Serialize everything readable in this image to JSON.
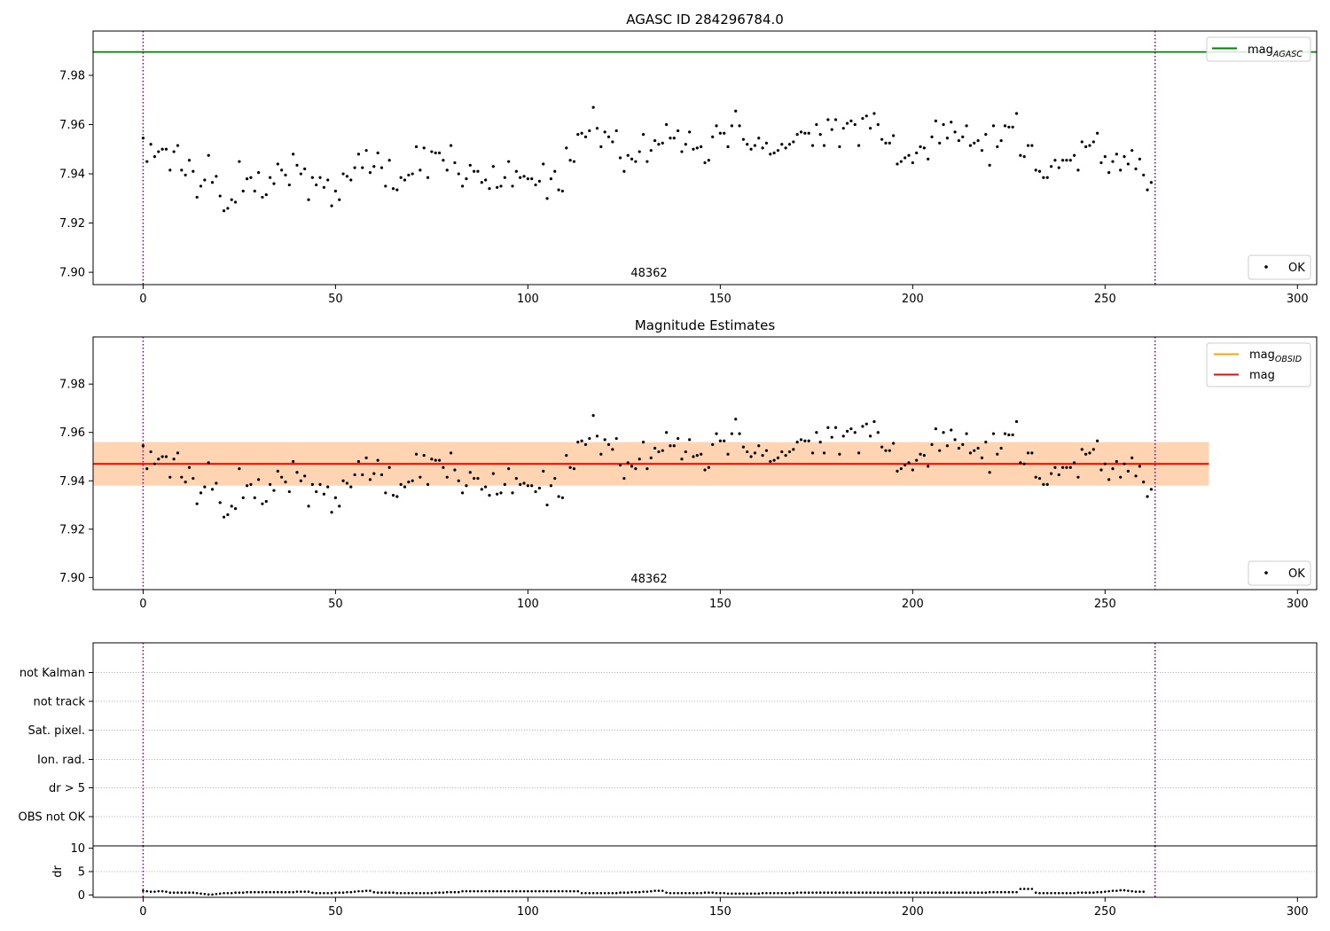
{
  "chart_data": [
    {
      "type": "scatter",
      "title": "AGASC ID 284296784.0",
      "xlim": [
        -13,
        305
      ],
      "ylim": [
        7.895,
        7.998
      ],
      "xticks": [
        "0",
        "50",
        "100",
        "150",
        "200",
        "250",
        "300"
      ],
      "yticks": [
        "7.90",
        "7.92",
        "7.94",
        "7.96",
        "7.98"
      ],
      "hlines": [
        {
          "label": "mag_AGASC",
          "y": 7.9895,
          "color": "#008000"
        }
      ],
      "vlines": [
        0,
        263
      ],
      "annotation": "48362",
      "legend_upper": [
        {
          "text": "mag",
          "sub": "AGASC",
          "color": "#008000"
        }
      ],
      "legend_lower": [
        {
          "text": "OK"
        }
      ],
      "legend_placement": [
        "top-right",
        "bottom-right"
      ],
      "grid": false
    },
    {
      "type": "scatter",
      "title": "Magnitude Estimates",
      "xlim": [
        -13,
        305
      ],
      "ylim": [
        7.895,
        7.9995
      ],
      "xticks": [
        "0",
        "50",
        "100",
        "150",
        "200",
        "250",
        "300"
      ],
      "yticks": [
        "7.90",
        "7.92",
        "7.94",
        "7.96",
        "7.98"
      ],
      "mag_obsid": {
        "y": 7.947,
        "band": [
          7.938,
          7.956
        ],
        "x_range": [
          -13,
          277
        ],
        "color": "#ffa500"
      },
      "mag": {
        "y": 7.947,
        "band": [
          7.938,
          7.956
        ],
        "x_range": [
          -13,
          277
        ],
        "color": "#ff0000"
      },
      "vlines": [
        0,
        263
      ],
      "annotation": "48362",
      "legend_upper": [
        {
          "text": "mag",
          "sub": "OBSID",
          "color": "#ffa500"
        },
        {
          "text": "mag",
          "sub": "",
          "color": "#ff0000"
        }
      ],
      "legend_lower": [
        {
          "text": "OK"
        }
      ],
      "legend_placement": [
        "top-right",
        "bottom-right"
      ],
      "grid": false
    },
    {
      "type": "scatter",
      "title": "",
      "categories": [
        "not Kalman",
        "not track",
        "Sat. pixel.",
        "Ion. rad.",
        "dr > 5",
        "OBS not OK"
      ],
      "flag_points": [],
      "vlines": [
        0,
        263
      ],
      "grid": true
    },
    {
      "type": "scatter",
      "title": "",
      "ylabel": "dr",
      "xlim": [
        -13,
        305
      ],
      "ylim": [
        -0.5,
        10.5
      ],
      "xticks": [
        "0",
        "50",
        "100",
        "150",
        "200",
        "250",
        "300"
      ],
      "yticks": [
        "0",
        "5",
        "10"
      ],
      "vlines": [
        0,
        263
      ],
      "grid": false
    }
  ],
  "mag_values": [
    7.9545,
    7.945,
    7.952,
    7.947,
    7.949,
    7.95,
    7.95,
    7.9415,
    7.949,
    7.9515,
    7.9415,
    7.9395,
    7.9455,
    7.941,
    7.9305,
    7.935,
    7.9375,
    7.9475,
    7.9365,
    7.939,
    7.931,
    7.925,
    7.926,
    7.9295,
    7.9285,
    7.945,
    7.933,
    7.938,
    7.9385,
    7.933,
    7.9405,
    7.9305,
    7.9315,
    7.9385,
    7.936,
    7.944,
    7.9415,
    7.9395,
    7.9355,
    7.948,
    7.9435,
    7.94,
    7.942,
    7.9295,
    7.9385,
    7.9355,
    7.9385,
    7.9345,
    7.9375,
    7.927,
    7.933,
    7.9295,
    7.94,
    7.939,
    7.9375,
    7.9425,
    7.948,
    7.9425,
    7.9495,
    7.9405,
    7.943,
    7.9485,
    7.9425,
    7.935,
    7.9455,
    7.934,
    7.9335,
    7.9385,
    7.9375,
    7.9395,
    7.94,
    7.951,
    7.9415,
    7.9505,
    7.9385,
    7.949,
    7.9485,
    7.9485,
    7.9455,
    7.9415,
    7.9515,
    7.9445,
    7.94,
    7.935,
    7.938,
    7.9435,
    7.941,
    7.941,
    7.9365,
    7.9375,
    7.934,
    7.943,
    7.9345,
    7.935,
    7.9385,
    7.945,
    7.935,
    7.941,
    7.9385,
    7.939,
    7.938,
    7.938,
    7.9355,
    7.937,
    7.944,
    7.93,
    7.938,
    7.941,
    7.9335,
    7.933,
    7.9505,
    7.9455,
    7.945,
    7.956,
    7.9565,
    7.955,
    7.9575,
    7.967,
    7.9585,
    7.951,
    7.957,
    7.955,
    7.953,
    7.9575,
    7.9465,
    7.941,
    7.9475,
    7.946,
    7.945,
    7.949,
    7.956,
    7.945,
    7.9495,
    7.9535,
    7.952,
    7.9525,
    7.96,
    7.9545,
    7.9545,
    7.9575,
    7.949,
    7.952,
    7.957,
    7.95,
    7.9505,
    7.951,
    7.9445,
    7.9455,
    7.955,
    7.9595,
    7.9565,
    7.9565,
    7.951,
    7.9595,
    7.9655,
    7.9595,
    7.954,
    7.952,
    7.95,
    7.9515,
    7.9545,
    7.9505,
    7.9525,
    7.948,
    7.9485,
    7.9495,
    7.952,
    7.9505,
    7.952,
    7.953,
    7.956,
    7.957,
    7.9565,
    7.9565,
    7.9515,
    7.96,
    7.956,
    7.9515,
    7.962,
    7.958,
    7.962,
    7.951,
    7.9585,
    7.9605,
    7.9615,
    7.96,
    7.9515,
    7.9625,
    7.9635,
    7.9585,
    7.9645,
    7.96,
    7.954,
    7.9525,
    7.9525,
    7.9555,
    7.944,
    7.945,
    7.9465,
    7.9475,
    7.9445,
    7.9485,
    7.951,
    7.9505,
    7.946,
    7.955,
    7.9615,
    7.9525,
    7.96,
    7.9545,
    7.961,
    7.957,
    7.9535,
    7.955,
    7.9595,
    7.9515,
    7.9525,
    7.9535,
    7.9495,
    7.956,
    7.9435,
    7.9595,
    7.951,
    7.9535,
    7.9595,
    7.959,
    7.959,
    7.9645,
    7.9475,
    7.947,
    7.9515,
    7.9515,
    7.9415,
    7.941,
    7.9385,
    7.9385,
    7.943,
    7.9455,
    7.9425,
    7.9455,
    7.9455,
    7.9455,
    7.9475,
    7.9415,
    7.953,
    7.951,
    7.9515,
    7.953,
    7.9565,
    7.9445,
    7.947,
    7.9405,
    7.945,
    7.948,
    7.9415,
    7.947,
    7.944,
    7.9495,
    7.942,
    7.946,
    7.9395,
    7.9335,
    7.9365
  ],
  "dr_values": [
    0.9,
    0.8,
    0.7,
    0.7,
    0.8,
    0.8,
    0.7,
    0.5,
    0.5,
    0.5,
    0.5,
    0.5,
    0.5,
    0.5,
    0.4,
    0.3,
    0.2,
    0.1,
    0.1,
    0.2,
    0.3,
    0.4,
    0.4,
    0.4,
    0.5,
    0.5,
    0.5,
    0.6,
    0.6,
    0.6,
    0.6,
    0.6,
    0.6,
    0.6,
    0.6,
    0.6,
    0.6,
    0.6,
    0.6,
    0.6,
    0.7,
    0.7,
    0.7,
    0.7,
    0.5,
    0.4,
    0.4,
    0.4,
    0.4,
    0.4,
    0.5,
    0.5,
    0.5,
    0.6,
    0.6,
    0.7,
    0.8,
    0.8,
    0.9,
    0.9,
    0.6,
    0.5,
    0.5,
    0.5,
    0.5,
    0.5,
    0.4,
    0.4,
    0.4,
    0.4,
    0.4,
    0.4,
    0.4,
    0.4,
    0.4,
    0.4,
    0.5,
    0.5,
    0.5,
    0.6,
    0.6,
    0.6,
    0.6,
    0.8,
    0.8,
    0.8,
    0.8,
    0.8,
    0.8,
    0.8,
    0.8,
    0.8,
    0.8,
    0.8,
    0.8,
    0.8,
    0.8,
    0.8,
    0.8,
    0.8,
    0.8,
    0.8,
    0.8,
    0.8,
    0.8,
    0.8,
    0.8,
    0.8,
    0.8,
    0.8,
    0.8,
    0.8,
    0.8,
    0.8,
    0.4,
    0.4,
    0.4,
    0.4,
    0.4,
    0.4,
    0.4,
    0.4,
    0.4,
    0.4,
    0.5,
    0.5,
    0.5,
    0.6,
    0.6,
    0.6,
    0.7,
    0.7,
    0.8,
    0.9,
    0.9,
    0.9,
    0.5,
    0.4,
    0.4,
    0.4,
    0.4,
    0.4,
    0.4,
    0.4,
    0.4,
    0.4,
    0.5,
    0.5,
    0.5,
    0.4,
    0.4,
    0.4,
    0.3,
    0.3,
    0.3,
    0.3,
    0.3,
    0.3,
    0.3,
    0.3,
    0.3,
    0.4,
    0.4,
    0.4,
    0.4,
    0.4,
    0.4,
    0.4,
    0.4,
    0.4,
    0.5,
    0.5,
    0.5,
    0.5,
    0.5,
    0.5,
    0.5,
    0.5,
    0.5,
    0.5,
    0.5,
    0.5,
    0.5,
    0.5,
    0.5,
    0.5,
    0.5,
    0.5,
    0.5,
    0.5,
    0.5,
    0.5,
    0.5,
    0.5,
    0.5,
    0.5,
    0.5,
    0.5,
    0.5,
    0.5,
    0.5,
    0.5,
    0.5,
    0.5,
    0.5,
    0.5,
    0.5,
    0.5,
    0.5,
    0.5,
    0.5,
    0.5,
    0.5,
    0.5,
    0.5,
    0.5,
    0.5,
    0.5,
    0.5,
    0.5,
    0.6,
    0.6,
    0.6,
    0.6,
    0.6,
    0.6,
    0.6,
    0.6,
    1.3,
    1.3,
    1.3,
    1.3,
    0.5,
    0.4,
    0.4,
    0.4,
    0.4,
    0.4,
    0.4,
    0.4,
    0.4,
    0.4,
    0.4,
    0.5,
    0.5,
    0.5,
    0.5,
    0.5,
    0.6,
    0.6,
    0.7,
    0.8,
    0.9,
    0.9,
    1.0,
    1.0,
    0.9,
    0.8,
    0.7,
    0.7,
    0.7
  ]
}
